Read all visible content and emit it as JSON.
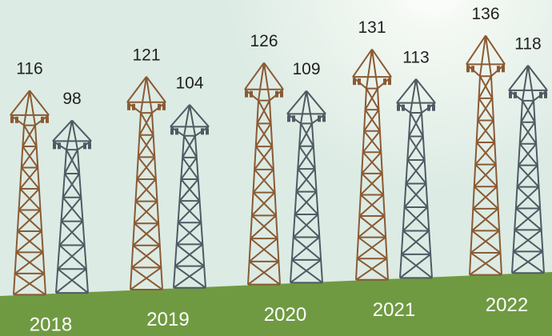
{
  "chart_data": {
    "type": "pylon",
    "categories": [
      "2018",
      "2019",
      "2020",
      "2021",
      "2022"
    ],
    "series": [
      {
        "color": "#8a5a33",
        "values": [
          116,
          121,
          126,
          131,
          136
        ]
      },
      {
        "color": "#4f5a63",
        "values": [
          98,
          104,
          109,
          113,
          118
        ]
      }
    ]
  }
}
